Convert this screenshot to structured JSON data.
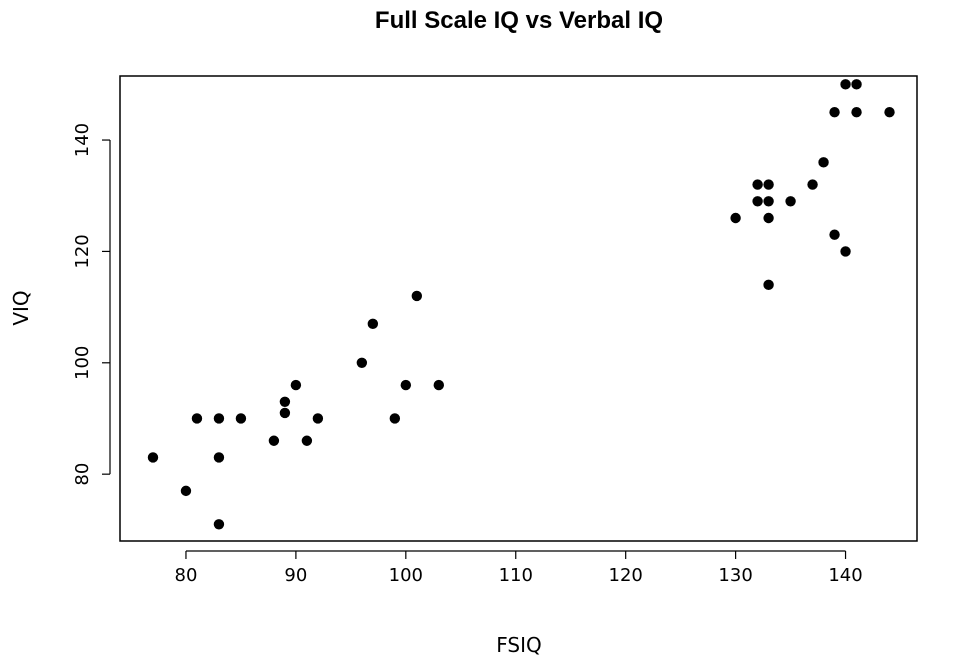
{
  "chart_data": {
    "type": "scatter",
    "title": "Full Scale IQ vs Verbal IQ",
    "xlabel": "FSIQ",
    "ylabel": "VIQ",
    "xlim": [
      74,
      146.5
    ],
    "ylim": [
      68,
      151.5
    ],
    "xticks": [
      80,
      90,
      100,
      110,
      120,
      130,
      140
    ],
    "yticks": [
      80,
      100,
      120,
      140
    ],
    "grid": false,
    "legend": "none",
    "marker_color": "#000000",
    "points": [
      {
        "x": 77,
        "y": 83
      },
      {
        "x": 80,
        "y": 77
      },
      {
        "x": 81,
        "y": 90
      },
      {
        "x": 83,
        "y": 90
      },
      {
        "x": 83,
        "y": 83
      },
      {
        "x": 83,
        "y": 71
      },
      {
        "x": 85,
        "y": 90
      },
      {
        "x": 88,
        "y": 86
      },
      {
        "x": 89,
        "y": 93
      },
      {
        "x": 89,
        "y": 91
      },
      {
        "x": 90,
        "y": 96
      },
      {
        "x": 91,
        "y": 86
      },
      {
        "x": 92,
        "y": 90
      },
      {
        "x": 96,
        "y": 100
      },
      {
        "x": 97,
        "y": 107
      },
      {
        "x": 99,
        "y": 90
      },
      {
        "x": 100,
        "y": 96
      },
      {
        "x": 101,
        "y": 112
      },
      {
        "x": 103,
        "y": 96
      },
      {
        "x": 130,
        "y": 126
      },
      {
        "x": 132,
        "y": 132
      },
      {
        "x": 132,
        "y": 129
      },
      {
        "x": 133,
        "y": 132
      },
      {
        "x": 133,
        "y": 129
      },
      {
        "x": 133,
        "y": 126
      },
      {
        "x": 133,
        "y": 114
      },
      {
        "x": 135,
        "y": 129
      },
      {
        "x": 137,
        "y": 132
      },
      {
        "x": 138,
        "y": 136
      },
      {
        "x": 139,
        "y": 145
      },
      {
        "x": 139,
        "y": 123
      },
      {
        "x": 140,
        "y": 150
      },
      {
        "x": 140,
        "y": 120
      },
      {
        "x": 141,
        "y": 150
      },
      {
        "x": 141,
        "y": 145
      },
      {
        "x": 144,
        "y": 145
      }
    ]
  }
}
